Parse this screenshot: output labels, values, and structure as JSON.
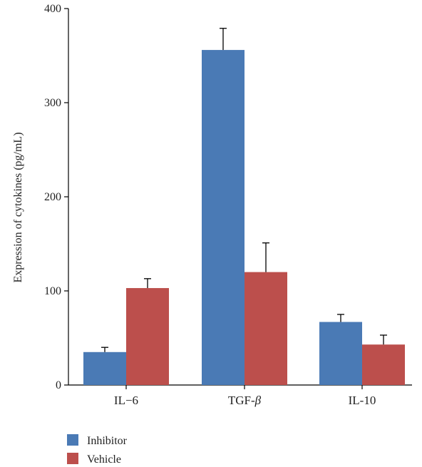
{
  "chart_data": {
    "type": "bar",
    "title": "",
    "xlabel": "",
    "ylabel": "Expression of cytokines (pg/mL)",
    "ylim": [
      0,
      400
    ],
    "yticks": [
      0,
      100,
      200,
      300,
      400
    ],
    "categories": [
      "IL−6",
      "TGF-",
      "IL-10"
    ],
    "category_suffix_italic": [
      "",
      "β",
      ""
    ],
    "series": [
      {
        "name": "Inhibitor",
        "color": "#4a7ab5",
        "values": [
          35,
          356,
          67
        ],
        "errors": [
          5,
          23,
          8
        ]
      },
      {
        "name": "Vehicle",
        "color": "#bc4f4c",
        "values": [
          103,
          120,
          43
        ],
        "errors": [
          10,
          31,
          10
        ]
      }
    ],
    "legend": "bottom-left",
    "grid": false
  }
}
